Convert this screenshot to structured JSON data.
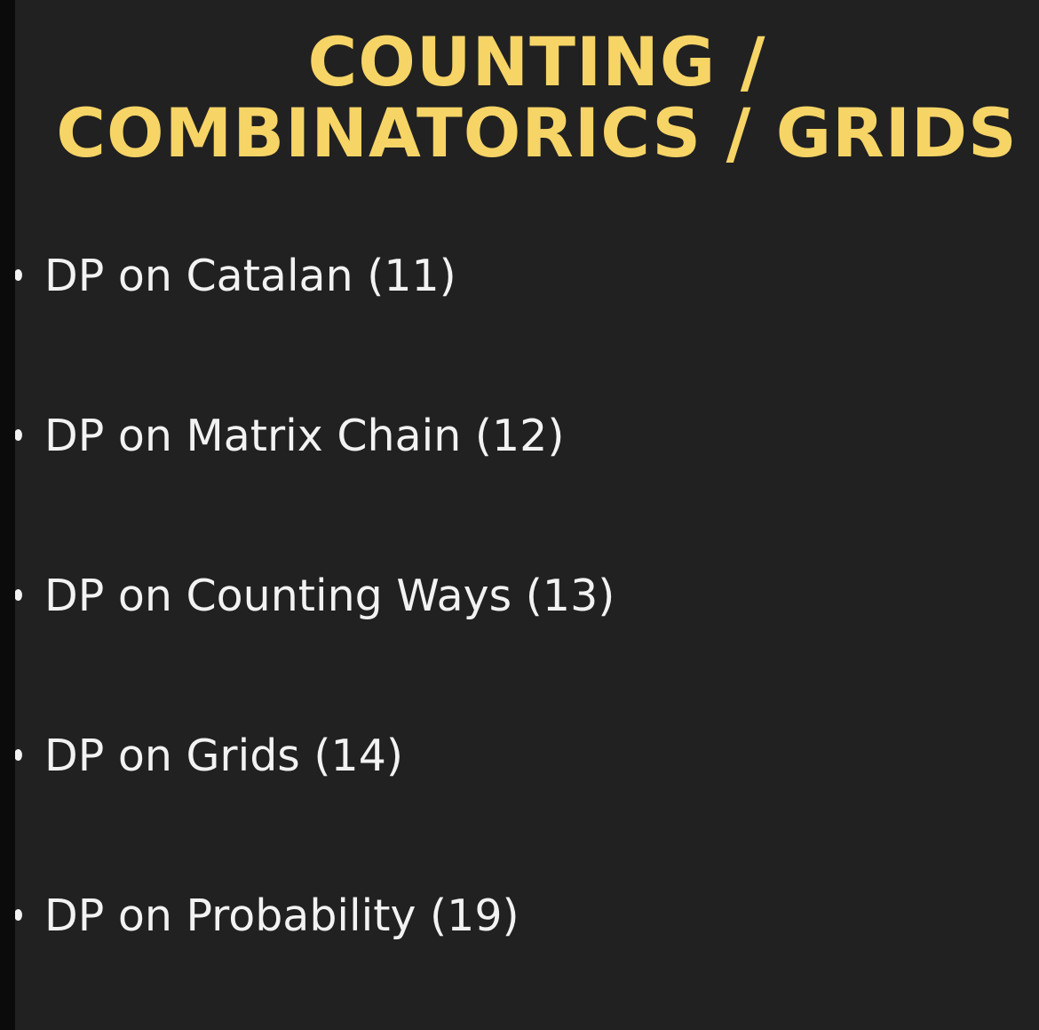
{
  "slide": {
    "title_line1": "COUNTING /",
    "title_line2": "COMBINATORICS / GRIDS",
    "title_color": "#f6d466",
    "background": "#212121",
    "items": [
      {
        "label": "DP on Catalan (11)"
      },
      {
        "label": "DP on Matrix Chain (12)"
      },
      {
        "label": "DP on Counting Ways (13)"
      },
      {
        "label": "DP on Grids (14)"
      },
      {
        "label": "DP on Probability (19)"
      }
    ]
  }
}
